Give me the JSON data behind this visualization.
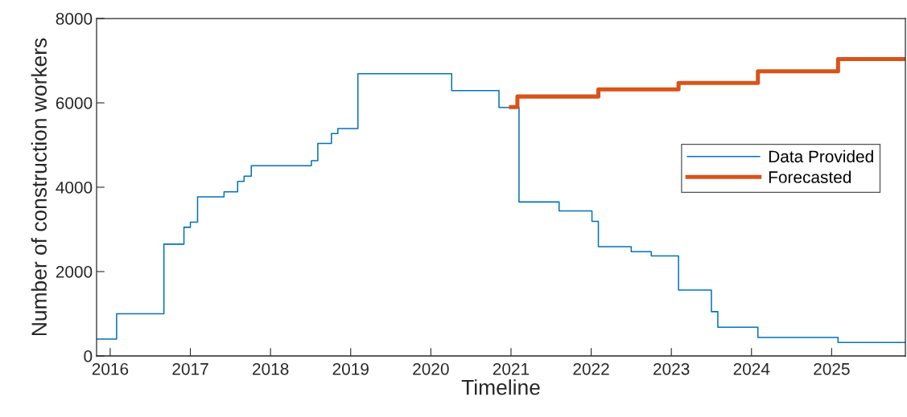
{
  "chart_data": {
    "type": "step",
    "xlabel": "Timeline",
    "ylabel": "Number of construction workers",
    "xlim": [
      2015.83,
      2025.92
    ],
    "xticks": [
      2016,
      2017,
      2018,
      2019,
      2020,
      2021,
      2022,
      2023,
      2024,
      2025
    ],
    "ylim": [
      0,
      8000
    ],
    "yticks": [
      0,
      2000,
      4000,
      6000,
      8000
    ],
    "grid": false,
    "legend": "right",
    "series": [
      {
        "name": "Data Provided",
        "color": "#0072bd",
        "x": [
          2015.83,
          2016.08,
          2016.67,
          2016.92,
          2017.0,
          2017.09,
          2017.42,
          2017.59,
          2017.67,
          2017.76,
          2018.51,
          2018.59,
          2018.76,
          2018.84,
          2019.09,
          2020.26,
          2020.85,
          2021.1,
          2021.6,
          2022.01,
          2022.09,
          2022.5,
          2022.75,
          2023.09,
          2023.5,
          2023.58,
          2024.08,
          2025.08,
          2025.92
        ],
        "values": [
          400,
          1000,
          2650,
          3050,
          3170,
          3770,
          3890,
          4140,
          4260,
          4510,
          4630,
          5040,
          5270,
          5390,
          6690,
          6290,
          5890,
          3650,
          3440,
          3190,
          2590,
          2470,
          2370,
          1560,
          1050,
          680,
          440,
          320,
          320
        ]
      },
      {
        "name": "Forecasted",
        "color": "#d95319",
        "x": [
          2021.0,
          2021.08,
          2022.09,
          2023.09,
          2024.08,
          2025.08,
          2025.92
        ],
        "values": [
          5900,
          6150,
          6320,
          6470,
          6750,
          7040,
          7040
        ]
      }
    ]
  }
}
